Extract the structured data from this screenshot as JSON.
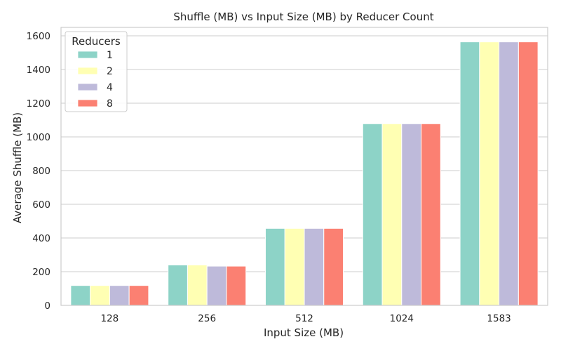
{
  "chart_data": {
    "type": "bar",
    "title": "Shuffle (MB) vs Input Size (MB) by Reducer Count",
    "xlabel": "Input Size (MB)",
    "ylabel": "Average Shuffle (MB)",
    "categories": [
      "128",
      "256",
      "512",
      "1024",
      "1583"
    ],
    "ylim": [
      0,
      1650
    ],
    "yticks": [
      0,
      200,
      400,
      600,
      800,
      1000,
      1200,
      1400,
      1600
    ],
    "grid": "horizontal",
    "legend": {
      "title": "Reducers",
      "placement": "top-left"
    },
    "series": [
      {
        "name": "1",
        "color": "#8dd3c7",
        "values": [
          118,
          240,
          457,
          1078,
          1564
        ]
      },
      {
        "name": "2",
        "color": "#ffffb3",
        "values": [
          118,
          240,
          457,
          1078,
          1564
        ]
      },
      {
        "name": "4",
        "color": "#bebada",
        "values": [
          118,
          233,
          457,
          1078,
          1564
        ]
      },
      {
        "name": "8",
        "color": "#fb8072",
        "values": [
          118,
          233,
          457,
          1078,
          1564
        ]
      }
    ]
  }
}
